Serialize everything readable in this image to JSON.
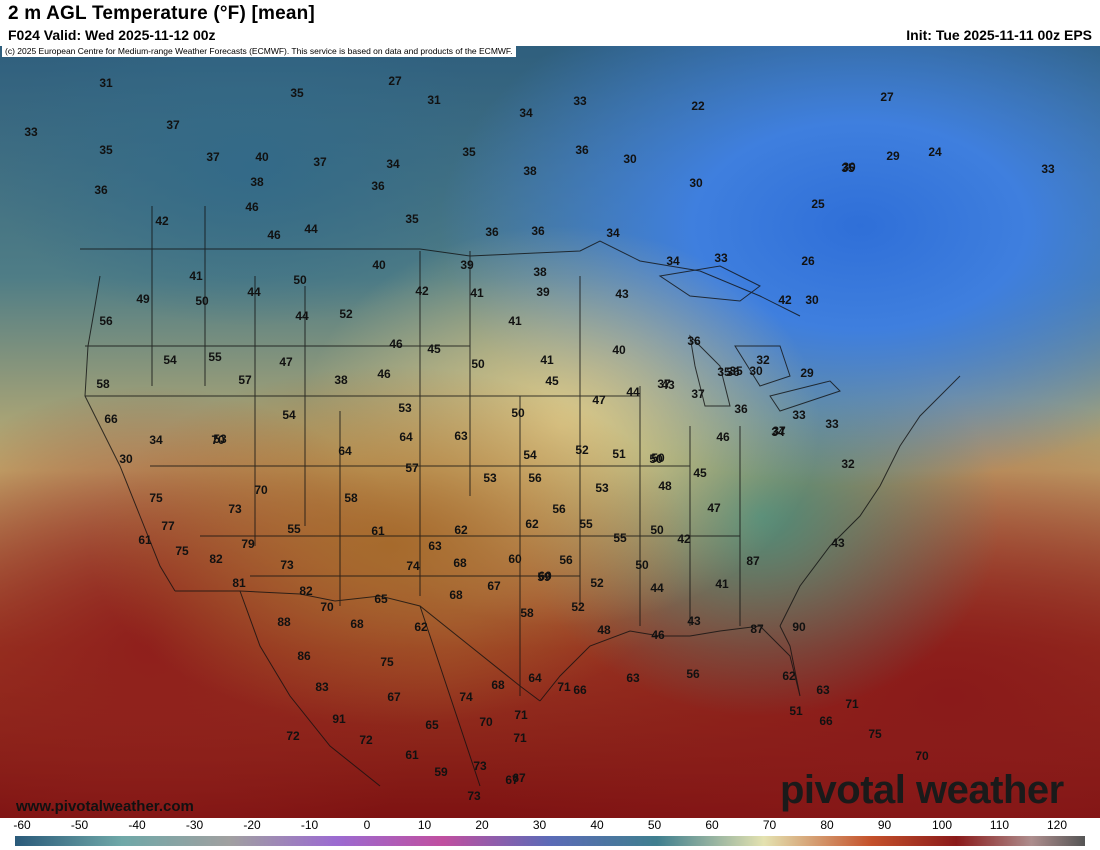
{
  "header": {
    "title": "2 m AGL Temperature (°F) [mean]",
    "valid": "F024 Valid: Wed 2025-11-12 00z",
    "init": "Init: Tue 2025-11-11 00z EPS"
  },
  "map": {
    "copyright": "(c) 2025 European Centre for Medium-range Weather Forecasts (ECMWF). This service is based on data and products of the ECMWF.",
    "website": "www.pivotalweather.com",
    "brand": "pivotal weather",
    "labels": [
      "31",
      "27",
      "35",
      "31",
      "34",
      "33",
      "22",
      "27",
      "37",
      "35",
      "33",
      "35",
      "36",
      "37",
      "40",
      "37",
      "34",
      "36",
      "38",
      "30",
      "30",
      "29",
      "24",
      "35",
      "36",
      "38",
      "46",
      "35",
      "30",
      "42",
      "46",
      "44",
      "36",
      "36",
      "34",
      "25",
      "26",
      "33",
      "50",
      "41",
      "40",
      "39",
      "38",
      "44",
      "49",
      "50",
      "44",
      "42",
      "41",
      "39",
      "52",
      "43",
      "41",
      "34",
      "33",
      "42",
      "56",
      "54",
      "55",
      "47",
      "46",
      "45",
      "50",
      "36",
      "36",
      "32",
      "30",
      "58",
      "57",
      "38",
      "46",
      "41",
      "40",
      "35",
      "35",
      "37",
      "30",
      "29",
      "66",
      "53",
      "54",
      "53",
      "45",
      "50",
      "47",
      "44",
      "43",
      "37",
      "36",
      "34",
      "33",
      "34",
      "64",
      "57",
      "64",
      "63",
      "54",
      "52",
      "51",
      "50",
      "46",
      "37",
      "32",
      "33",
      "30",
      "70",
      "53",
      "56",
      "53",
      "50",
      "45",
      "48",
      "75",
      "73",
      "70",
      "58",
      "61",
      "62",
      "62",
      "56",
      "55",
      "55",
      "50",
      "47",
      "43",
      "61",
      "77",
      "75",
      "82",
      "79",
      "55",
      "63",
      "74",
      "68",
      "67",
      "60",
      "59",
      "56",
      "52",
      "50",
      "44",
      "42",
      "41",
      "87",
      "81",
      "82",
      "73",
      "70",
      "68",
      "68",
      "65",
      "62",
      "60",
      "58",
      "52",
      "48",
      "46",
      "43",
      "87",
      "90",
      "88",
      "86",
      "83",
      "91",
      "72",
      "72",
      "75",
      "67",
      "65",
      "61",
      "59",
      "73",
      "73",
      "74",
      "68",
      "71",
      "71",
      "70",
      "67",
      "67",
      "64",
      "71",
      "66",
      "63",
      "56",
      "51",
      "62",
      "63",
      "66",
      "71",
      "75",
      "70"
    ]
  },
  "scale": {
    "labels": [
      "-60",
      "-50",
      "-40",
      "-30",
      "-20",
      "-10",
      "0",
      "10",
      "20",
      "30",
      "40",
      "50",
      "60",
      "70",
      "80",
      "90",
      "100",
      "110",
      "120"
    ]
  }
}
